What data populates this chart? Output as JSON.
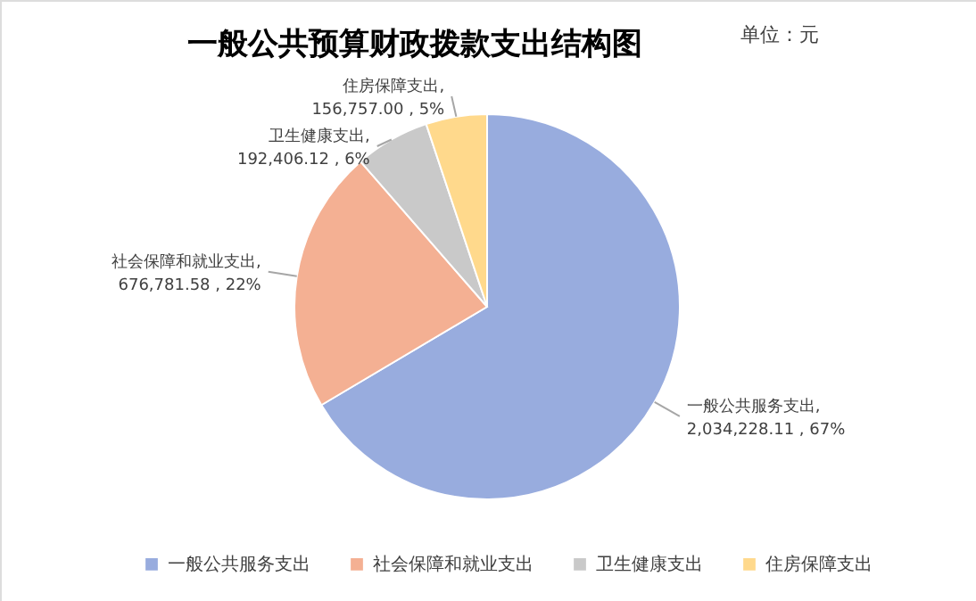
{
  "chart_data": {
    "type": "pie",
    "title": "一般公共预算财政拨款支出结构图",
    "annotations": [
      "单位：元"
    ],
    "categories": [
      "一般公共服务支出",
      "社会保障和就业支出",
      "卫生健康支出",
      "住房保障支出"
    ],
    "values": [
      2034228.11,
      676781.58,
      192406.12,
      156757.0
    ],
    "colors": [
      "#98acde",
      "#f4b093",
      "#c9c9c9",
      "#ffd98c"
    ],
    "value_labels": [
      "一般公共服务支出,\n2,034,228.11 , 67%",
      "社会保障和就业支出,\n676,781.58 , 22%",
      "卫生健康支出,\n192,406.12 , 6%",
      "住房保障支出,\n156,757.00 , 5%"
    ],
    "legend": "bottom"
  }
}
